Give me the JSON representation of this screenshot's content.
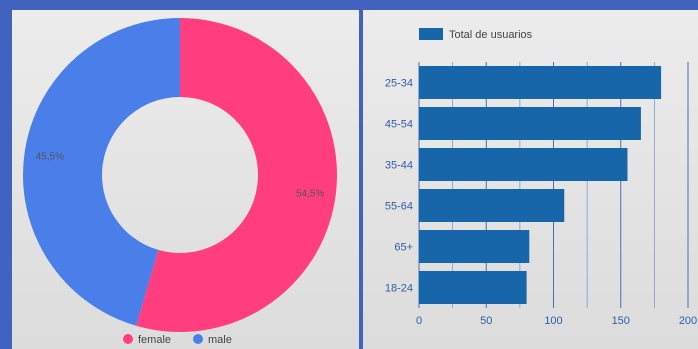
{
  "chart_data": [
    {
      "type": "pie",
      "donut": true,
      "categories": [
        "female",
        "male"
      ],
      "values": [
        54.5,
        45.5
      ],
      "data_labels": [
        "54,5%",
        "45,5%"
      ],
      "colors": [
        "#ff3d7f",
        "#4a7fea"
      ],
      "legend": {
        "placement": "bottom",
        "entries": [
          {
            "label": "female",
            "color": "#ff3d7f"
          },
          {
            "label": "male",
            "color": "#4a7fea"
          }
        ]
      }
    },
    {
      "type": "bar",
      "orientation": "horizontal",
      "categories": [
        "25-34",
        "45-54",
        "35-44",
        "55-64",
        "65+",
        "18-24"
      ],
      "series": [
        {
          "name": "Total de usuarios",
          "values": [
            180,
            165,
            155,
            108,
            82,
            80
          ],
          "color": "#1766a9"
        }
      ],
      "xlim": [
        0,
        200
      ],
      "xticks": [
        "0",
        "50",
        "100",
        "150",
        "200"
      ],
      "legend": {
        "placement": "top-left"
      },
      "grid": true
    }
  ]
}
